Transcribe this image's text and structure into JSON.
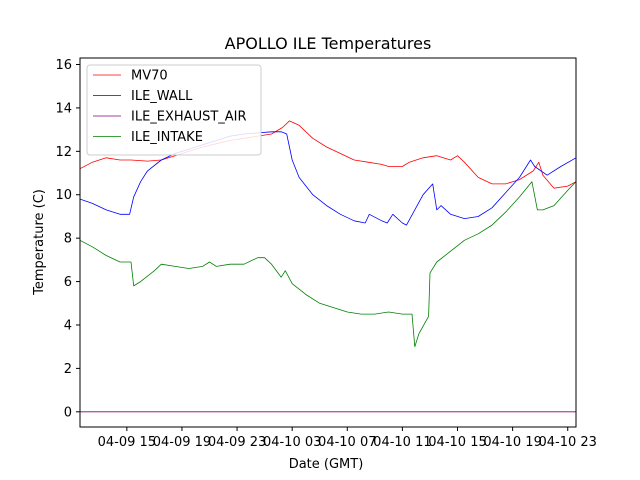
{
  "chart_data": {
    "type": "line",
    "title": "APOLLO ILE Temperatures",
    "xlabel": "Date (GMT)",
    "ylabel": "Temperature (C)",
    "x_unit": "hours since 04-09 15:00 GMT",
    "xlim": [
      -3.4,
      32.6
    ],
    "ylim": [
      -0.7,
      16.3
    ],
    "x_ticks": [
      {
        "value": 0,
        "label": "04-09 15"
      },
      {
        "value": 4,
        "label": "04-09 19"
      },
      {
        "value": 8,
        "label": "04-09 23"
      },
      {
        "value": 12,
        "label": "04-10 03"
      },
      {
        "value": 16,
        "label": "04-10 07"
      },
      {
        "value": 20,
        "label": "04-10 11"
      },
      {
        "value": 24,
        "label": "04-10 15"
      },
      {
        "value": 28,
        "label": "04-10 19"
      },
      {
        "value": 32,
        "label": "04-10 23"
      }
    ],
    "y_ticks": [
      {
        "value": 0,
        "label": "0"
      },
      {
        "value": 2,
        "label": "2"
      },
      {
        "value": 4,
        "label": "4"
      },
      {
        "value": 6,
        "label": "6"
      },
      {
        "value": 8,
        "label": "8"
      },
      {
        "value": 10,
        "label": "10"
      },
      {
        "value": 12,
        "label": "12"
      },
      {
        "value": 14,
        "label": "14"
      },
      {
        "value": 16,
        "label": "16"
      }
    ],
    "legend": "top-left",
    "series": [
      {
        "name": "MV70",
        "color": "#ff0000",
        "x": [
          -3.4,
          -2.5,
          -1.5,
          -0.5,
          0.3,
          1.5,
          2.5,
          3.5,
          4.5,
          5.5,
          6.5,
          7.5,
          8.5,
          9.5,
          10.5,
          11.3,
          11.8,
          12.5,
          13.5,
          14.5,
          15.5,
          16.5,
          17.5,
          18.5,
          19,
          20,
          20.5,
          21.5,
          22.5,
          23.5,
          24,
          24.5,
          25.5,
          26.5,
          27.5,
          28.5,
          29.5,
          29.9,
          30.2,
          31,
          32,
          32.6
        ],
        "y": [
          11.2,
          11.5,
          11.7,
          11.6,
          11.6,
          11.55,
          11.6,
          11.8,
          12.0,
          12.2,
          12.35,
          12.5,
          12.6,
          12.7,
          12.8,
          13.1,
          13.4,
          13.2,
          12.6,
          12.2,
          11.9,
          11.6,
          11.5,
          11.4,
          11.3,
          11.3,
          11.5,
          11.7,
          11.8,
          11.6,
          11.8,
          11.5,
          10.8,
          10.5,
          10.5,
          10.7,
          11.1,
          11.5,
          10.9,
          10.3,
          10.4,
          10.6
        ]
      },
      {
        "name": "ILE_WALL",
        "color": "#0000ff",
        "x": [
          -3.4,
          -2.5,
          -1.5,
          -0.5,
          0.2,
          0.5,
          1.0,
          1.5,
          2.5,
          3.5,
          4.5,
          5.5,
          6.5,
          7.5,
          8.5,
          9.5,
          10.5,
          11.2,
          11.6,
          12.0,
          12.5,
          13.5,
          14.5,
          15.5,
          16.5,
          17.3,
          17.6,
          18.5,
          18.9,
          19.3,
          20.0,
          20.3,
          21.5,
          22.2,
          22.5,
          22.8,
          23.5,
          24.5,
          25.5,
          26.5,
          27.5,
          28.5,
          29.3,
          29.6,
          30.5,
          31.5,
          32.6
        ],
        "y": [
          9.8,
          9.6,
          9.3,
          9.1,
          9.1,
          9.9,
          10.6,
          11.1,
          11.6,
          11.9,
          12.1,
          12.3,
          12.5,
          12.7,
          12.8,
          12.85,
          12.9,
          12.9,
          12.8,
          11.6,
          10.8,
          10.0,
          9.5,
          9.1,
          8.8,
          8.7,
          9.1,
          8.8,
          8.7,
          9.1,
          8.7,
          8.6,
          10.0,
          10.5,
          9.3,
          9.5,
          9.1,
          8.9,
          9.0,
          9.4,
          10.1,
          10.8,
          11.6,
          11.3,
          10.9,
          11.3,
          11.7
        ]
      },
      {
        "name": "ILE_EXHAUST_AIR",
        "color": "#800080",
        "x": [
          -3.4,
          32.6
        ],
        "y": [
          0.0,
          0.0
        ]
      },
      {
        "name": "ILE_INTAKE",
        "color": "#008000",
        "x": [
          -3.4,
          -2.5,
          -1.5,
          -0.5,
          0.3,
          0.5,
          1.0,
          2.0,
          2.5,
          3.5,
          4.5,
          5.5,
          6.0,
          6.5,
          7.5,
          8.5,
          9.5,
          10.0,
          10.5,
          11.2,
          11.5,
          12.0,
          13.0,
          14.0,
          15.0,
          16.0,
          17.0,
          18.0,
          19.0,
          20.0,
          20.7,
          20.9,
          21.2,
          21.9,
          22.0,
          22.5,
          23.5,
          24.5,
          25.5,
          26.5,
          27.5,
          28.5,
          29.4,
          29.8,
          30.2,
          31.0,
          32.0,
          32.6
        ],
        "y": [
          7.9,
          7.6,
          7.2,
          6.9,
          6.9,
          5.8,
          6.0,
          6.5,
          6.8,
          6.7,
          6.6,
          6.7,
          6.9,
          6.7,
          6.8,
          6.8,
          7.1,
          7.1,
          6.8,
          6.2,
          6.5,
          5.9,
          5.4,
          5.0,
          4.8,
          4.6,
          4.5,
          4.5,
          4.6,
          4.5,
          4.5,
          3.0,
          3.6,
          4.4,
          6.4,
          6.9,
          7.4,
          7.9,
          8.2,
          8.6,
          9.2,
          9.9,
          10.6,
          9.3,
          9.3,
          9.5,
          10.2,
          10.6
        ]
      }
    ]
  }
}
